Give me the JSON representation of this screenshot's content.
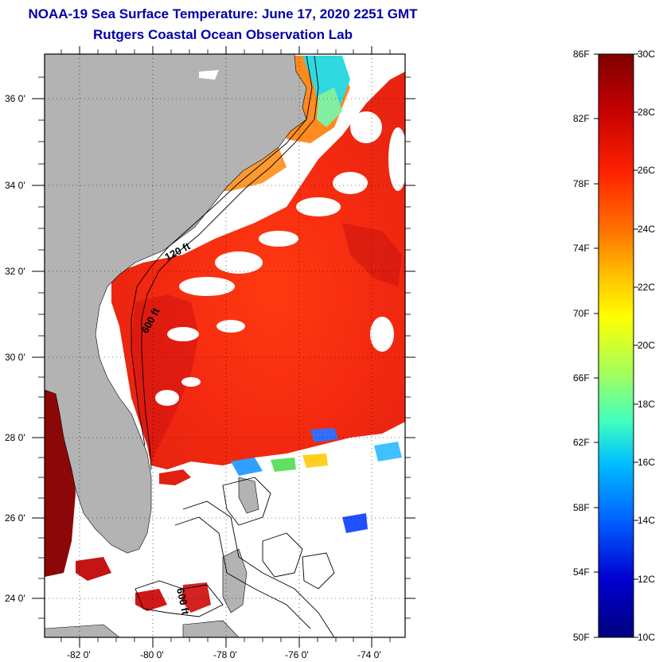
{
  "header": {
    "title": "NOAA-19 Sea Surface Temperature:  June 17, 2020 2251 GMT",
    "subtitle": "Rutgers Coastal Ocean Observation Lab"
  },
  "map": {
    "lat_labels": [
      "36 0'",
      "34 0'",
      "32 0'",
      "30 0'",
      "28 0'",
      "26 0'",
      "24 0'"
    ],
    "lon_labels": [
      "-82 0'",
      "-80 0'",
      "-78 0'",
      "-76 0'",
      "-74 0'"
    ],
    "contour_labels": [
      "120 ft",
      "600 ft",
      "600 ft"
    ],
    "land_color": "#b3b3b3",
    "cloud_color": "#ffffff"
  },
  "colorbar": {
    "fahrenheit_labels": [
      "86F",
      "82F",
      "78F",
      "74F",
      "70F",
      "66F",
      "62F",
      "58F",
      "54F",
      "50F"
    ],
    "celsius_labels": [
      "30C",
      "28C",
      "26C",
      "24C",
      "22C",
      "20C",
      "18C",
      "16C",
      "14C",
      "12C",
      "10C"
    ],
    "colors": [
      "#7f0000",
      "#c00000",
      "#ff2000",
      "#ff7000",
      "#ffc000",
      "#ffff00",
      "#a0ff60",
      "#40ffc0",
      "#00c0ff",
      "#0060ff",
      "#0000d0",
      "#00007f"
    ]
  }
}
